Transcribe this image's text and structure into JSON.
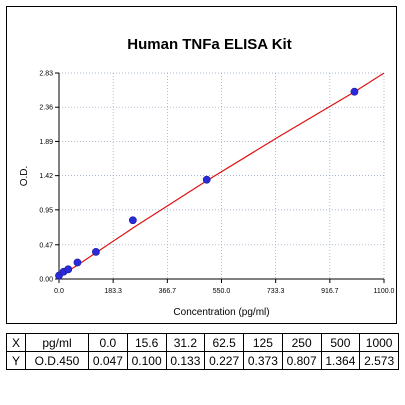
{
  "chart_data": {
    "type": "scatter",
    "title": "Human TNFa ELISA Kit",
    "xlabel": "Concentration (pg/ml)",
    "ylabel": "O.D.",
    "xlim": [
      0,
      1100
    ],
    "ylim": [
      0,
      2.83
    ],
    "x_ticks": [
      "0.0",
      "183.3",
      "366.7",
      "550.0",
      "733.3",
      "916.7",
      "1100.0"
    ],
    "x_tick_values": [
      0,
      183.3,
      366.7,
      550.0,
      733.3,
      916.7,
      1100.0
    ],
    "y_ticks": [
      "0.00",
      "0.47",
      "0.95",
      "1.42",
      "1.89",
      "2.36",
      "2.83"
    ],
    "y_tick_values": [
      0,
      0.47,
      0.95,
      1.42,
      1.89,
      2.36,
      2.83
    ],
    "grid": true,
    "points": {
      "x": [
        0,
        15.6,
        31.2,
        62.5,
        125,
        250,
        500,
        1000
      ],
      "y": [
        0.047,
        0.1,
        0.133,
        0.227,
        0.373,
        0.807,
        1.364,
        2.573
      ]
    },
    "fit_line": {
      "x": [
        0,
        15.6,
        31.2,
        62.5,
        125,
        250,
        500,
        750,
        1000,
        1100
      ],
      "y": [
        0.03,
        0.07,
        0.11,
        0.19,
        0.36,
        0.7,
        1.35,
        1.97,
        2.57,
        2.83
      ]
    },
    "colors": {
      "points": "#2a2ad8",
      "fit": "#e01010",
      "grid": "#8aa0c0"
    }
  },
  "table": {
    "row_x": {
      "label": "X",
      "unit": "pg/ml",
      "values": [
        "0.0",
        "15.6",
        "31.2",
        "62.5",
        "125",
        "250",
        "500",
        "1000"
      ]
    },
    "row_y": {
      "label": "Y",
      "unit": "O.D.450",
      "values": [
        "0.047",
        "0.100",
        "0.133",
        "0.227",
        "0.373",
        "0.807",
        "1.364",
        "2.573"
      ]
    }
  }
}
